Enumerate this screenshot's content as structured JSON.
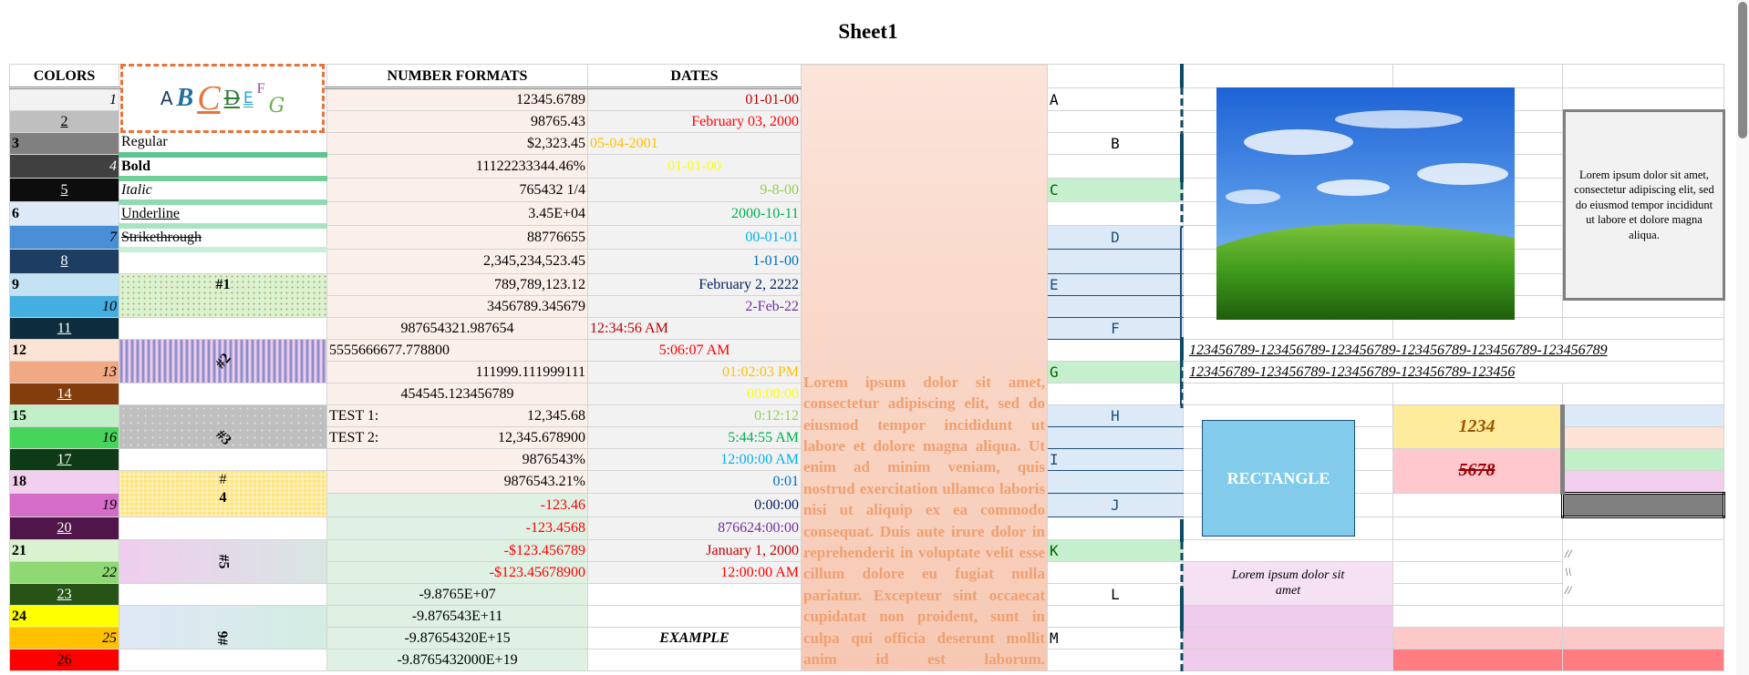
{
  "title": "Sheet1",
  "headers": {
    "colors": "COLORS",
    "numbers": "NUMBER FORMATS",
    "dates": "DATES"
  },
  "abc_sample": [
    {
      "ch": "A",
      "color": "#1f3864",
      "style": "sans"
    },
    {
      "ch": "B",
      "color": "#1f6fa0",
      "style": "bold-italic"
    },
    {
      "ch": "C",
      "color": "#e8733a",
      "style": "italic-underline-large"
    },
    {
      "ch": "D",
      "color": "#2e7d32",
      "style": "strike-underline"
    },
    {
      "ch": "E",
      "color": "#29a3d6",
      "style": "double-underline-small"
    },
    {
      "ch": "F",
      "color": "#a03fa0",
      "style": "superscript"
    },
    {
      "ch": "G",
      "color": "#6ab04c",
      "style": "script-subscript"
    }
  ],
  "colors": [
    {
      "n": "1",
      "bg": "#f2f2f2",
      "fg": "#000",
      "style": "i",
      "align": "r"
    },
    {
      "n": "2",
      "bg": "#bfbfbf",
      "fg": "#000",
      "style": "u",
      "align": "c"
    },
    {
      "n": "3",
      "bg": "#808080",
      "fg": "#000",
      "style": "b",
      "align": "l"
    },
    {
      "n": "4",
      "bg": "#404040",
      "fg": "#fff",
      "style": "i",
      "align": "r"
    },
    {
      "n": "5",
      "bg": "#0d0d0d",
      "fg": "#fff",
      "style": "u",
      "align": "c"
    },
    {
      "n": "6",
      "bg": "#dde9f7",
      "fg": "#000",
      "style": "b",
      "align": "l"
    },
    {
      "n": "7",
      "bg": "#4a8fd6",
      "fg": "#000",
      "style": "i",
      "align": "r"
    },
    {
      "n": "8",
      "bg": "#1d3d63",
      "fg": "#fff",
      "style": "u",
      "align": "c"
    },
    {
      "n": "9",
      "bg": "#c3e3f5",
      "fg": "#000",
      "style": "b",
      "align": "l"
    },
    {
      "n": "10",
      "bg": "#45aee0",
      "fg": "#000",
      "style": "i",
      "align": "r"
    },
    {
      "n": "11",
      "bg": "#0d2d3d",
      "fg": "#fff",
      "style": "u",
      "align": "c"
    },
    {
      "n": "12",
      "bg": "#fbe3d6",
      "fg": "#000",
      "style": "b",
      "align": "l"
    },
    {
      "n": "13",
      "bg": "#f1a983",
      "fg": "#000",
      "style": "i",
      "align": "r"
    },
    {
      "n": "14",
      "bg": "#833c0c",
      "fg": "#fff",
      "style": "u",
      "align": "c"
    },
    {
      "n": "15",
      "bg": "#c1f0c8",
      "fg": "#000",
      "style": "b",
      "align": "l"
    },
    {
      "n": "16",
      "bg": "#47d45a",
      "fg": "#000",
      "style": "i",
      "align": "r"
    },
    {
      "n": "17",
      "bg": "#0e3a16",
      "fg": "#fff",
      "style": "u",
      "align": "c"
    },
    {
      "n": "18",
      "bg": "#f2cfee",
      "fg": "#000",
      "style": "b",
      "align": "l"
    },
    {
      "n": "19",
      "bg": "#d56dc8",
      "fg": "#000",
      "style": "i",
      "align": "r"
    },
    {
      "n": "20",
      "bg": "#501549",
      "fg": "#fff",
      "style": "u",
      "align": "c"
    },
    {
      "n": "21",
      "bg": "#daf2d0",
      "fg": "#000",
      "style": "b",
      "align": "l"
    },
    {
      "n": "22",
      "bg": "#8ed973",
      "fg": "#000",
      "style": "i",
      "align": "r"
    },
    {
      "n": "23",
      "bg": "#275317",
      "fg": "#fff",
      "style": "u",
      "align": "c"
    },
    {
      "n": "24",
      "bg": "#ffff00",
      "fg": "#000",
      "style": "b",
      "align": "l"
    },
    {
      "n": "25",
      "bg": "#ffc000",
      "fg": "#000",
      "style": "i",
      "align": "r"
    },
    {
      "n": "26",
      "bg": "#ff0000",
      "fg": "#000",
      "style": "u",
      "align": "c"
    }
  ],
  "text_styles": [
    "Regular",
    "Bold",
    "Italic",
    "Underline",
    "Strikethrough"
  ],
  "patterns": [
    "#1",
    "#2",
    "#3",
    "#",
    "4",
    "#5",
    "#6"
  ],
  "numbers": [
    {
      "v": "12345.6789",
      "align": "r",
      "color": "#000"
    },
    {
      "v": "98765.43",
      "align": "r",
      "color": "#000"
    },
    {
      "v": "$2,323.45",
      "align": "r",
      "color": "#000"
    },
    {
      "v": "11122233344.46%",
      "align": "r",
      "color": "#000"
    },
    {
      "v": "765432 1/4",
      "align": "r",
      "color": "#000"
    },
    {
      "v": "3.45E+04",
      "align": "r",
      "color": "#000"
    },
    {
      "v": "88776655",
      "align": "r",
      "color": "#000"
    },
    {
      "v": "2,345,234,523.45",
      "align": "r",
      "color": "#000"
    },
    {
      "v": "789,789,123.12",
      "align": "r",
      "color": "#000"
    },
    {
      "v": "3456789.345679",
      "align": "r",
      "color": "#000"
    },
    {
      "v": "987654321.987654",
      "align": "c",
      "color": "#000"
    },
    {
      "v": "5555666677.778800",
      "align": "l",
      "color": "#000"
    },
    {
      "v": "111999.111999111",
      "align": "r",
      "color": "#000"
    },
    {
      "v": "454545.123456789",
      "align": "c",
      "color": "#000"
    },
    {
      "label": "TEST 1:",
      "v": "12,345.68",
      "align": "r",
      "color": "#000"
    },
    {
      "label": "TEST 2:",
      "v": "12,345.678900",
      "align": "r",
      "color": "#000"
    },
    {
      "v": "9876543%",
      "align": "r",
      "color": "#000"
    },
    {
      "v": "9876543.21%",
      "align": "r",
      "color": "#000"
    },
    {
      "v": "-123.46",
      "align": "r",
      "color": "#ff0000"
    },
    {
      "v": "-123.4568",
      "align": "r",
      "color": "#ff0000"
    },
    {
      "v": "-$123.456789",
      "align": "r",
      "color": "#ff0000"
    },
    {
      "v": "-$123.45678900",
      "align": "r",
      "color": "#ff0000"
    },
    {
      "v": "-9.8765E+07",
      "align": "c",
      "color": "#000"
    },
    {
      "v": "-9.876543E+11",
      "align": "c",
      "color": "#000"
    },
    {
      "v": "-9.87654320E+15",
      "align": "c",
      "color": "#000"
    },
    {
      "v": "-9.8765432000E+19",
      "align": "c",
      "color": "#000"
    }
  ],
  "dates": [
    {
      "v": "01-01-00",
      "align": "r",
      "color": "#c00000"
    },
    {
      "v": "February 03, 2000",
      "align": "r",
      "color": "#ff0000"
    },
    {
      "v": "05-04-2001",
      "align": "l",
      "color": "#ffc000"
    },
    {
      "v": "01-01-00",
      "align": "c",
      "color": "#ffff00"
    },
    {
      "v": "9-8-00",
      "align": "r",
      "color": "#92d050"
    },
    {
      "v": "2000-10-11",
      "align": "r",
      "color": "#00b050"
    },
    {
      "v": "00-01-01",
      "align": "r",
      "color": "#00b0f0"
    },
    {
      "v": "1-01-00",
      "align": "r",
      "color": "#0070c0"
    },
    {
      "v": "February 2, 2222",
      "align": "r",
      "color": "#002060"
    },
    {
      "v": "2-Feb-22",
      "align": "r",
      "color": "#7030a0"
    },
    {
      "v": "12:34:56 AM",
      "align": "l",
      "color": "#c00000"
    },
    {
      "v": "5:06:07 AM",
      "align": "c",
      "color": "#ff0000"
    },
    {
      "v": "01:02:03 PM",
      "align": "r",
      "color": "#ffc000"
    },
    {
      "v": "00:00:00",
      "align": "r",
      "color": "#ffff00"
    },
    {
      "v": "0:12:12",
      "align": "r",
      "color": "#92d050"
    },
    {
      "v": "5:44:55 AM",
      "align": "r",
      "color": "#00b050"
    },
    {
      "v": "12:00:00 AM",
      "align": "r",
      "color": "#00b0f0"
    },
    {
      "v": "0:01",
      "align": "r",
      "color": "#0070c0"
    },
    {
      "v": "0:00:00",
      "align": "r",
      "color": "#002060"
    },
    {
      "v": "876624:00:00",
      "align": "r",
      "color": "#7030a0"
    },
    {
      "v": "January 1, 2000",
      "align": "r",
      "color": "#c00000"
    },
    {
      "v": "12:00:00 AM",
      "align": "r",
      "color": "#ff0000"
    },
    {
      "v": "",
      "align": "r",
      "color": "#000"
    },
    {
      "v": "",
      "align": "r",
      "color": "#000"
    },
    {
      "v": "EXAMPLE",
      "align": "c",
      "color": "#000"
    },
    {
      "v": "",
      "align": "r",
      "color": "#000"
    }
  ],
  "lorem_long": "Lorem ipsum dolor sit amet, consectetur adipiscing elit, sed do eiusmod tempor incididunt ut labore et dolore magna aliqua. Ut enim ad minim veniam, quis nostrud exercitation ullamco laboris nisi ut aliquip ex ea commodo consequat. Duis aute irure dolor in reprehenderit in voluptate velit esse cillum dolore eu fugiat nulla pariatur. Excepteur sint occaecat cupidatat non proident, sunt in culpa qui officia deserunt mollit anim id est laborum.",
  "letters": [
    {
      "row": 1,
      "v": "A",
      "align": "l",
      "bg": "#fff",
      "color": "#000"
    },
    {
      "row": 3,
      "v": "B",
      "align": "c",
      "bg": "#fff",
      "color": "#000"
    },
    {
      "row": 5,
      "v": "C",
      "align": "l",
      "bg": "#c6efce",
      "color": "#006100"
    },
    {
      "row": 7,
      "v": "D",
      "align": "c",
      "bg": "#dce9f7",
      "color": "#1f4e79"
    },
    {
      "row": 9,
      "v": "E",
      "align": "l",
      "bg": "#dce9f7",
      "color": "#1f4e79"
    },
    {
      "row": 11,
      "v": "F",
      "align": "c",
      "bg": "#dce9f7",
      "color": "#1f4e79"
    },
    {
      "row": 13,
      "v": "G",
      "align": "l",
      "bg": "#c6efce",
      "color": "#006100"
    },
    {
      "row": 15,
      "v": "H",
      "align": "c",
      "bg": "#dce9f7",
      "color": "#1f4e79"
    },
    {
      "row": 17,
      "v": "I",
      "align": "l",
      "bg": "#dce9f7",
      "color": "#1f4e79"
    },
    {
      "row": 19,
      "v": "J",
      "align": "c",
      "bg": "#dce9f7",
      "color": "#1f4e79"
    },
    {
      "row": 21,
      "v": "K",
      "align": "l",
      "bg": "#c6efce",
      "color": "#006100"
    },
    {
      "row": 23,
      "v": "L",
      "align": "c",
      "bg": "#fff",
      "color": "#000"
    },
    {
      "row": 25,
      "v": "M",
      "align": "l",
      "bg": "#fff",
      "color": "#000"
    }
  ],
  "long_numbers": [
    "123456789-123456789-123456789-123456789-123456789-123456789",
    "123456789-123456789-123456789-123456789-123456"
  ],
  "note_box": "Lorem ipsum dolor sit amet, consectetur adipiscing elit, sed do eiusmod tempor incididunt ut labore et dolore magna aliqua.",
  "rectangle_label": "RECTANGLE",
  "value_1234": "1234",
  "value_5678": "5678",
  "lorem_short": "Lorem ipsum dolor sit amet",
  "slashes": [
    "//",
    "\\\\",
    "//"
  ],
  "image_alt": "green hill and blue sky landscape"
}
